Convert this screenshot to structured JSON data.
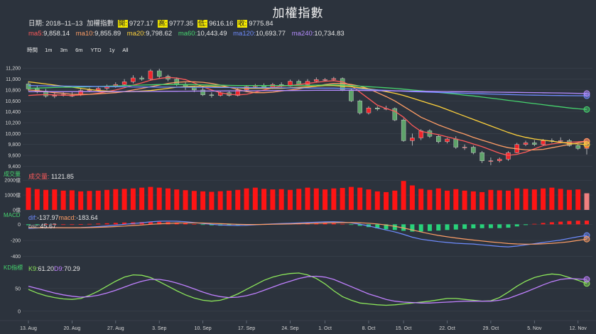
{
  "title": "加權指數",
  "info": {
    "date_label": "日期:",
    "date": "2018–11–13",
    "name": "加權指數",
    "open_label": "開:",
    "open": "9727.17",
    "high_label": "高:",
    "high": "9777.35",
    "low_label": "低:",
    "low": "9616.16",
    "close_label": "收:",
    "close": "9775.84"
  },
  "ma_values": [
    {
      "label": "ma5:",
      "value": "9,858.14",
      "color": "#ff5a5a"
    },
    {
      "label": "ma10:",
      "value": "9,855.89",
      "color": "#ff9e66"
    },
    {
      "label": "ma20:",
      "value": "9,798.62",
      "color": "#ffd23c"
    },
    {
      "label": "ma60:",
      "value": "10,443.49",
      "color": "#46d46e"
    },
    {
      "label": "ma120:",
      "value": "10,693.77",
      "color": "#6f8cff"
    },
    {
      "label": "ma240:",
      "value": "10,734.83",
      "color": "#b58cff"
    }
  ],
  "range_selector": {
    "label": "時間",
    "buttons": [
      "1m",
      "3m",
      "6m",
      "YTD",
      "1y",
      "All"
    ]
  },
  "colors": {
    "up": "#f0242a",
    "down": "#5ea36a",
    "volume": "#ff1414",
    "macd_pos": "#ff1e1e",
    "macd_neg": "#28d27a",
    "dif": "#6f8cff",
    "macd_line": "#ff9e66",
    "k": "#8ce65a",
    "d": "#c080ff",
    "grid": "#3b434e",
    "text": "#d8d8d8"
  },
  "chart_data": [
    {
      "type": "candlestick",
      "title": "加權指數",
      "x": [
        "13. Aug",
        "14. Aug",
        "15. Aug",
        "16. Aug",
        "17. Aug",
        "20. Aug",
        "21. Aug",
        "22. Aug",
        "23. Aug",
        "24. Aug",
        "27. Aug",
        "28. Aug",
        "29. Aug",
        "30. Aug",
        "31. Aug",
        "3. Sep",
        "4. Sep",
        "5. Sep",
        "6. Sep",
        "7. Sep",
        "10. Sep",
        "11. Sep",
        "12. Sep",
        "13. Sep",
        "14. Sep",
        "17. Sep",
        "18. Sep",
        "19. Sep",
        "20. Sep",
        "21. Sep",
        "25. Sep",
        "26. Sep",
        "27. Sep",
        "28. Sep",
        "1. Oct",
        "2. Oct",
        "3. Oct",
        "4. Oct",
        "5. Oct",
        "8. Oct",
        "9. Oct",
        "11. Oct",
        "12. Oct",
        "15. Oct",
        "16. Oct",
        "17. Oct",
        "18. Oct",
        "19. Oct",
        "22. Oct",
        "23. Oct",
        "24. Oct",
        "25. Oct",
        "26. Oct",
        "29. Oct",
        "30. Oct",
        "31. Oct",
        "1. Nov",
        "2. Nov",
        "5. Nov",
        "6. Nov",
        "7. Nov",
        "8. Nov",
        "9. Nov",
        "12. Nov",
        "13. Nov"
      ],
      "open": [
        10910,
        10820,
        10780,
        10690,
        10700,
        10700,
        10720,
        10790,
        10800,
        10830,
        10860,
        10900,
        10950,
        11020,
        11000,
        11150,
        11050,
        11000,
        10900,
        10850,
        10800,
        10710,
        10700,
        10750,
        10700,
        10800,
        10860,
        10880,
        10850,
        10900,
        10870,
        10960,
        10900,
        10960,
        10990,
        10990,
        11010,
        10800,
        10600,
        10380,
        10470,
        10450,
        10460,
        10250,
        9870,
        9920,
        10050,
        9950,
        9850,
        9900,
        9750,
        9750,
        9650,
        9500,
        9500,
        9530,
        9650,
        9800,
        9830,
        9800,
        9870,
        9860,
        9870,
        9780,
        9727
      ],
      "close": [
        10820,
        10780,
        10690,
        10700,
        10720,
        10700,
        10790,
        10800,
        10830,
        10860,
        10900,
        10950,
        11020,
        11000,
        11150,
        11050,
        11000,
        10900,
        10850,
        10800,
        10710,
        10700,
        10750,
        10700,
        10800,
        10860,
        10880,
        10850,
        10900,
        10870,
        10960,
        10900,
        10960,
        10990,
        10990,
        11010,
        10800,
        10600,
        10380,
        10470,
        10450,
        10460,
        10250,
        9870,
        9920,
        10050,
        9950,
        9850,
        9900,
        9750,
        9750,
        9650,
        9500,
        9500,
        9530,
        9650,
        9800,
        9830,
        9800,
        9870,
        9860,
        9870,
        9780,
        9727,
        9776
      ],
      "high": [
        10960,
        10880,
        10820,
        10760,
        10760,
        10760,
        10820,
        10840,
        10860,
        10900,
        10940,
        11000,
        11070,
        11060,
        11180,
        11190,
        11080,
        11030,
        10940,
        10870,
        10840,
        10760,
        10780,
        10780,
        10830,
        10890,
        10910,
        10920,
        10930,
        10940,
        10990,
        10990,
        11000,
        11030,
        11020,
        11040,
        11030,
        10830,
        10620,
        10500,
        10500,
        10510,
        10480,
        10280,
        10000,
        10080,
        10080,
        9980,
        9920,
        9950,
        9800,
        9780,
        9680,
        9560,
        9560,
        9680,
        9830,
        9870,
        9880,
        9900,
        9910,
        9930,
        9900,
        9810,
        9777
      ],
      "low": [
        10780,
        10740,
        10660,
        10650,
        10680,
        10670,
        10690,
        10760,
        10780,
        10800,
        10840,
        10880,
        10920,
        10970,
        10970,
        11010,
        10960,
        10870,
        10800,
        10760,
        10690,
        10660,
        10680,
        10680,
        10680,
        10780,
        10840,
        10830,
        10820,
        10850,
        10860,
        10880,
        10880,
        10940,
        10960,
        10970,
        10780,
        10580,
        10350,
        10350,
        10420,
        10430,
        10230,
        9850,
        9780,
        9880,
        9920,
        9820,
        9820,
        9720,
        9700,
        9620,
        9460,
        9420,
        9470,
        9500,
        9640,
        9770,
        9770,
        9780,
        9830,
        9820,
        9760,
        9700,
        9616
      ],
      "ma5": [
        10700,
        10710,
        10715,
        10710,
        10705,
        10700,
        10710,
        10720,
        10740,
        10770,
        10800,
        10840,
        10890,
        10930,
        10980,
        11010,
        11030,
        11020,
        10990,
        10930,
        10860,
        10800,
        10750,
        10720,
        10710,
        10720,
        10760,
        10800,
        10840,
        10870,
        10880,
        10900,
        10920,
        10940,
        10960,
        10970,
        10950,
        10880,
        10760,
        10640,
        10520,
        10460,
        10410,
        10300,
        10150,
        10040,
        10010,
        9980,
        9940,
        9900,
        9860,
        9810,
        9760,
        9700,
        9640,
        9600,
        9620,
        9660,
        9720,
        9780,
        9810,
        9830,
        9840,
        9850,
        9858
      ],
      "ma10": [
        10800,
        10790,
        10770,
        10750,
        10740,
        10720,
        10720,
        10720,
        10730,
        10740,
        10750,
        10770,
        10800,
        10830,
        10860,
        10890,
        10920,
        10940,
        10950,
        10950,
        10940,
        10920,
        10890,
        10850,
        10810,
        10770,
        10750,
        10750,
        10760,
        10780,
        10800,
        10820,
        10850,
        10870,
        10900,
        10920,
        10920,
        10900,
        10870,
        10820,
        10750,
        10680,
        10600,
        10500,
        10400,
        10300,
        10230,
        10160,
        10100,
        10040,
        9990,
        9930,
        9880,
        9830,
        9780,
        9740,
        9720,
        9700,
        9700,
        9710,
        9740,
        9770,
        9800,
        9830,
        9856
      ],
      "ma20": [
        10950,
        10930,
        10910,
        10890,
        10870,
        10850,
        10830,
        10810,
        10790,
        10780,
        10770,
        10770,
        10770,
        10780,
        10790,
        10810,
        10830,
        10850,
        10860,
        10870,
        10870,
        10870,
        10860,
        10850,
        10840,
        10830,
        10830,
        10830,
        10830,
        10830,
        10840,
        10850,
        10860,
        10870,
        10880,
        10880,
        10870,
        10860,
        10840,
        10820,
        10800,
        10770,
        10740,
        10700,
        10650,
        10600,
        10550,
        10500,
        10440,
        10380,
        10320,
        10260,
        10200,
        10140,
        10080,
        10020,
        9970,
        9930,
        9900,
        9880,
        9860,
        9840,
        9820,
        9810,
        9799
      ],
      "ma60": [
        10830,
        10835,
        10840,
        10845,
        10850,
        10850,
        10855,
        10860,
        10865,
        10870,
        10875,
        10880,
        10885,
        10890,
        10895,
        10900,
        10900,
        10900,
        10900,
        10900,
        10895,
        10890,
        10890,
        10885,
        10880,
        10880,
        10880,
        10880,
        10880,
        10880,
        10880,
        10885,
        10885,
        10890,
        10890,
        10895,
        10890,
        10880,
        10870,
        10860,
        10850,
        10840,
        10830,
        10815,
        10800,
        10785,
        10770,
        10755,
        10740,
        10725,
        10705,
        10690,
        10670,
        10650,
        10630,
        10610,
        10590,
        10570,
        10550,
        10530,
        10510,
        10490,
        10470,
        10455,
        10443
      ],
      "ma120": [
        10880,
        10878,
        10876,
        10874,
        10872,
        10870,
        10868,
        10866,
        10864,
        10862,
        10860,
        10858,
        10856,
        10855,
        10854,
        10853,
        10852,
        10851,
        10850,
        10849,
        10848,
        10847,
        10846,
        10845,
        10844,
        10843,
        10842,
        10841,
        10840,
        10839,
        10838,
        10837,
        10836,
        10835,
        10834,
        10833,
        10830,
        10825,
        10818,
        10810,
        10800,
        10792,
        10785,
        10778,
        10770,
        10765,
        10760,
        10755,
        10750,
        10745,
        10740,
        10735,
        10730,
        10725,
        10720,
        10716,
        10712,
        10708,
        10705,
        10702,
        10700,
        10698,
        10696,
        10695,
        10694
      ],
      "ma240": [
        10770,
        10770,
        10770,
        10770,
        10770,
        10770,
        10770,
        10770,
        10770,
        10770,
        10770,
        10771,
        10772,
        10773,
        10774,
        10775,
        10776,
        10777,
        10778,
        10779,
        10780,
        10781,
        10782,
        10783,
        10784,
        10785,
        10786,
        10787,
        10788,
        10789,
        10790,
        10791,
        10792,
        10793,
        10794,
        10795,
        10794,
        10793,
        10791,
        10789,
        10787,
        10785,
        10783,
        10781,
        10779,
        10777,
        10775,
        10773,
        10771,
        10769,
        10767,
        10765,
        10763,
        10761,
        10759,
        10757,
        10755,
        10753,
        10751,
        10749,
        10747,
        10745,
        10741,
        10738,
        10735
      ],
      "y_ticks": [
        9400,
        9600,
        9800,
        10000,
        10200,
        10400,
        10600,
        10800,
        11000,
        11200
      ],
      "ylim": [
        9380,
        11280
      ]
    },
    {
      "type": "bar",
      "title": "成交量",
      "value_label": "成交量",
      "value": "1121.85",
      "values": [
        1500,
        1400,
        1350,
        1380,
        1300,
        1320,
        1250,
        1280,
        1300,
        1350,
        1400,
        1420,
        1450,
        1500,
        1550,
        1500,
        1450,
        1380,
        1330,
        1280,
        1250,
        1220,
        1260,
        1300,
        1350,
        1450,
        1500,
        1420,
        1380,
        1400,
        1350,
        1420,
        1500,
        1450,
        1380,
        1450,
        1480,
        1550,
        1500,
        1380,
        1250,
        1200,
        1300,
        1950,
        1650,
        1420,
        1350,
        1450,
        1300,
        1400,
        1300,
        1250,
        1200,
        1350,
        1320,
        1300,
        1450,
        1420,
        1380,
        1450,
        1500,
        1420,
        1350,
        1380,
        1122
      ],
      "y_ticks": [
        0,
        1000,
        2000
      ],
      "tick_labels": [
        "0億",
        "1000億",
        "2000億"
      ],
      "ylim": [
        0,
        2200
      ]
    },
    {
      "type": "bar",
      "title": "MACD",
      "dif_label": "dif:",
      "dif": "-137.97",
      "macd_label": "macd:",
      "macd": "-183.64",
      "osc_label": "osc:",
      "osc": "45.67",
      "dif_values": [
        -50,
        -45,
        -40,
        -40,
        -42,
        -42,
        -40,
        -35,
        -28,
        -20,
        -10,
        0,
        10,
        20,
        30,
        38,
        40,
        38,
        32,
        22,
        10,
        0,
        -8,
        -12,
        -14,
        -12,
        -6,
        0,
        6,
        10,
        14,
        18,
        22,
        26,
        30,
        32,
        28,
        18,
        2,
        -20,
        -45,
        -70,
        -95,
        -125,
        -160,
        -185,
        -200,
        -215,
        -225,
        -235,
        -240,
        -245,
        -255,
        -265,
        -275,
        -280,
        -270,
        -255,
        -240,
        -225,
        -210,
        -195,
        -175,
        -155,
        -138
      ],
      "macd_values": [
        -40,
        -42,
        -42,
        -42,
        -42,
        -42,
        -42,
        -40,
        -37,
        -33,
        -28,
        -22,
        -15,
        -8,
        0,
        6,
        12,
        16,
        18,
        18,
        16,
        12,
        8,
        4,
        0,
        -2,
        -2,
        -1,
        1,
        3,
        5,
        8,
        11,
        14,
        17,
        20,
        22,
        22,
        20,
        14,
        5,
        -8,
        -25,
        -45,
        -70,
        -95,
        -118,
        -138,
        -155,
        -170,
        -183,
        -195,
        -207,
        -218,
        -228,
        -238,
        -244,
        -246,
        -246,
        -242,
        -236,
        -228,
        -216,
        -200,
        -184
      ],
      "osc_values": [
        -10,
        -3,
        2,
        2,
        0,
        0,
        2,
        5,
        9,
        13,
        18,
        22,
        25,
        28,
        30,
        32,
        28,
        22,
        14,
        4,
        -6,
        -12,
        -16,
        -16,
        -14,
        -10,
        -4,
        1,
        5,
        7,
        9,
        10,
        11,
        12,
        13,
        12,
        6,
        -4,
        -18,
        -34,
        -50,
        -62,
        -70,
        -80,
        -90,
        -90,
        -82,
        -77,
        -70,
        -65,
        -57,
        -50,
        -48,
        -47,
        -47,
        -42,
        -26,
        -9,
        6,
        17,
        26,
        33,
        41,
        45,
        46
      ],
      "y_ticks": [
        -400,
        -200,
        0
      ],
      "ylim": [
        -420,
        100
      ]
    },
    {
      "type": "line",
      "title": "KD指標",
      "k_label": "K9:",
      "k": "61.20",
      "d_label": "D9:",
      "d": "70.29",
      "k_values": [
        48,
        40,
        34,
        30,
        27,
        26,
        28,
        35,
        44,
        55,
        66,
        75,
        80,
        79,
        74,
        65,
        55,
        45,
        36,
        29,
        24,
        22,
        24,
        30,
        38,
        48,
        58,
        68,
        75,
        80,
        83,
        84,
        80,
        72,
        60,
        45,
        32,
        24,
        18,
        16,
        14,
        13,
        14,
        16,
        18,
        20,
        22,
        25,
        28,
        28,
        26,
        24,
        22,
        23,
        30,
        42,
        55,
        66,
        74,
        79,
        82,
        80,
        74,
        68,
        61
      ],
      "d_values": [
        55,
        50,
        45,
        40,
        36,
        33,
        31,
        32,
        35,
        40,
        46,
        53,
        60,
        66,
        70,
        70,
        67,
        62,
        56,
        49,
        42,
        36,
        32,
        30,
        31,
        34,
        39,
        46,
        53,
        60,
        66,
        72,
        76,
        77,
        75,
        70,
        62,
        54,
        46,
        38,
        32,
        26,
        22,
        20,
        19,
        18,
        18,
        19,
        20,
        21,
        22,
        22,
        22,
        22,
        24,
        28,
        35,
        42,
        50,
        58,
        65,
        70,
        72,
        71,
        70
      ],
      "y_ticks": [
        0,
        50
      ],
      "ylim": [
        -5,
        95
      ]
    }
  ],
  "x_axis": {
    "labels": [
      "13. Aug",
      "20. Aug",
      "27. Aug",
      "3. Sep",
      "10. Sep",
      "17. Sep",
      "24. Sep",
      "1. Oct",
      "8. Oct",
      "15. Oct",
      "22. Oct",
      "29. Oct",
      "5. Nov",
      "12. Nov"
    ],
    "positions": [
      0,
      5,
      10,
      15,
      20,
      25,
      30,
      34,
      39,
      43,
      48,
      53,
      58,
      63
    ]
  }
}
